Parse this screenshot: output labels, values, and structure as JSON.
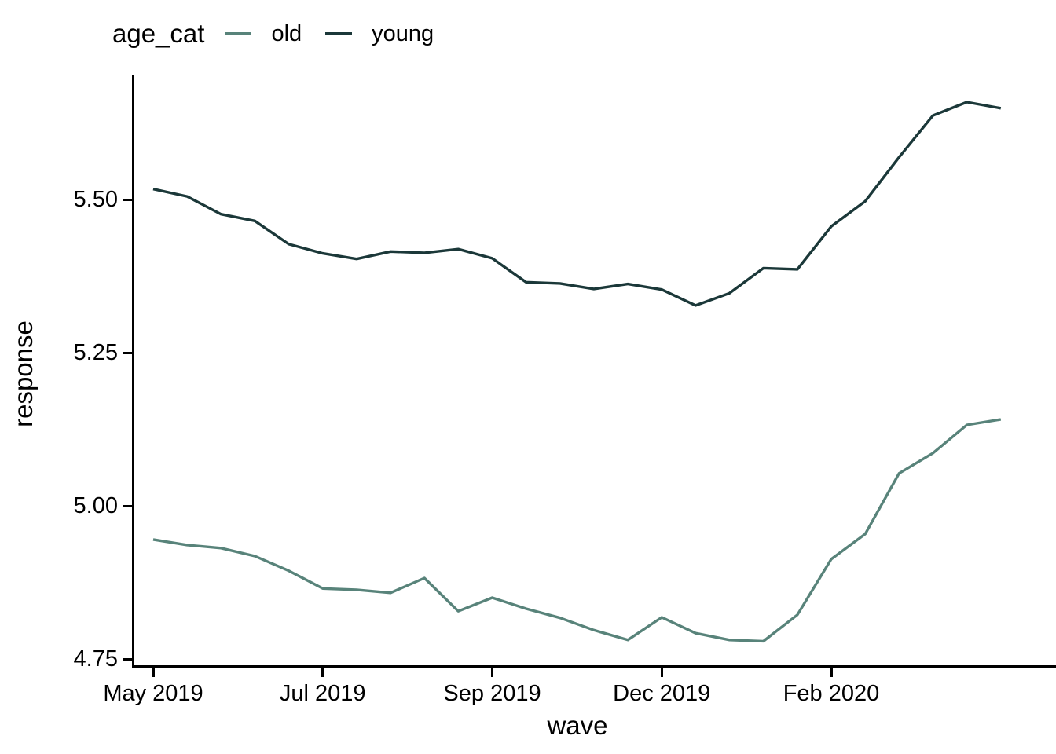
{
  "legend": {
    "title": "age_cat",
    "items": [
      {
        "label": "old",
        "color": "#58837A"
      },
      {
        "label": "young",
        "color": "#1B3839"
      }
    ]
  },
  "axes": {
    "x_title": "wave",
    "y_title": "response"
  },
  "chart_data": {
    "type": "line",
    "title": "",
    "xlabel": "wave",
    "ylabel": "response",
    "legend_title": "age_cat",
    "legend_position": "top-left",
    "grid": false,
    "x": [
      1,
      2,
      3,
      4,
      5,
      6,
      7,
      8,
      9,
      10,
      11,
      12,
      13,
      14,
      15,
      16,
      17,
      18,
      19,
      20,
      21,
      22,
      23,
      24,
      25,
      26
    ],
    "x_ticks": [
      {
        "wave": 1,
        "label": "May 2019"
      },
      {
        "wave": 6,
        "label": "Jul 2019"
      },
      {
        "wave": 11,
        "label": "Sep 2019"
      },
      {
        "wave": 16,
        "label": "Dec 2019"
      },
      {
        "wave": 21,
        "label": "Feb 2020"
      }
    ],
    "y_ticks": [
      {
        "value": 4.75,
        "label": "4.75"
      },
      {
        "value": 5.0,
        "label": "5.00"
      },
      {
        "value": 5.25,
        "label": "5.25"
      },
      {
        "value": 5.5,
        "label": "5.50"
      }
    ],
    "ylim": [
      4.74,
      5.7
    ],
    "series": [
      {
        "name": "old",
        "color": "#58837A",
        "values": [
          4.945,
          4.936,
          4.931,
          4.918,
          4.894,
          4.865,
          4.863,
          4.858,
          4.882,
          4.828,
          4.85,
          4.832,
          4.817,
          4.797,
          4.781,
          4.818,
          4.792,
          4.781,
          4.779,
          4.822,
          4.913,
          4.954,
          5.053,
          5.086,
          5.132,
          5.141
        ]
      },
      {
        "name": "young",
        "color": "#1B3839",
        "values": [
          5.517,
          5.505,
          5.476,
          5.465,
          5.427,
          5.412,
          5.403,
          5.415,
          5.413,
          5.419,
          5.404,
          5.365,
          5.363,
          5.354,
          5.362,
          5.353,
          5.327,
          5.347,
          5.388,
          5.386,
          5.456,
          5.497,
          5.569,
          5.637,
          5.659,
          5.649
        ]
      }
    ]
  }
}
